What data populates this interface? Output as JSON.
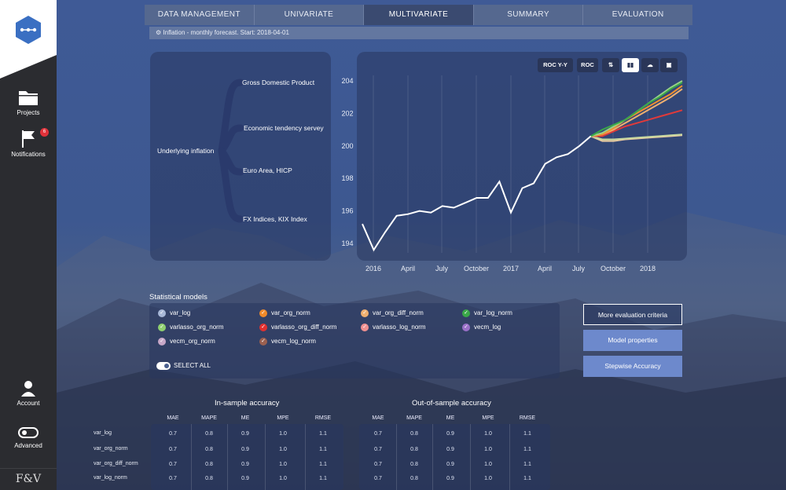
{
  "sidebar": {
    "items": [
      {
        "label": "Projects",
        "icon": "folder-icon"
      },
      {
        "label": "Notifications",
        "icon": "flag-icon",
        "badge": "6"
      },
      {
        "label": "Account",
        "icon": "user-icon"
      },
      {
        "label": "Advanced",
        "icon": "toggle-icon"
      }
    ],
    "brand": "F&V"
  },
  "tabs": [
    {
      "label": "DATA MANAGEMENT"
    },
    {
      "label": "UNIVARIATE"
    },
    {
      "label": "MULTIVARIATE",
      "active": true
    },
    {
      "label": "SUMMARY"
    },
    {
      "label": "EVALUATION"
    }
  ],
  "info_bar": "Inflation - monthly forecast. Start: 2018-04-01",
  "tree": {
    "root": "Underlying inflation",
    "children": [
      "Gross Domestic Product",
      "Economic tendency servey",
      "Euro Area, HICP",
      "FX Indices, KIX Index"
    ]
  },
  "toolbar": {
    "roc_yy": "ROC Y-Y",
    "roc": "ROC"
  },
  "chart_data": {
    "type": "line",
    "x_ticks": [
      "2016",
      "April",
      "July",
      "October",
      "2017",
      "April",
      "July",
      "October",
      "2018"
    ],
    "y_ticks": [
      "204",
      "202",
      "200",
      "198",
      "196",
      "194"
    ],
    "ylim": [
      193,
      205
    ],
    "history": [
      195.2,
      193.6,
      194.7,
      195.7,
      195.8,
      196.0,
      195.9,
      196.3,
      196.2,
      196.5,
      196.8,
      196.8,
      197.8,
      195.9,
      197.4,
      197.7,
      198.9,
      199.3,
      199.5,
      200.0,
      200.6
    ],
    "forecast_start_index": 20,
    "series": [
      {
        "color": "#e8c9a0",
        "values": [
          200.6,
          200.3,
          200.3,
          200.4,
          200.45,
          200.5,
          200.55,
          200.6,
          200.65
        ]
      },
      {
        "color": "#c8d9a0",
        "values": [
          200.6,
          200.4,
          200.4,
          200.45,
          200.5,
          200.55,
          200.6,
          200.65,
          200.7
        ]
      },
      {
        "color": "#e03a3a",
        "values": [
          200.6,
          200.6,
          200.9,
          201.2,
          201.4,
          201.6,
          201.8,
          202.0,
          202.2
        ]
      },
      {
        "color": "#f0b070",
        "values": [
          200.6,
          200.7,
          201.0,
          201.4,
          201.8,
          202.2,
          202.6,
          203.0,
          203.5
        ]
      },
      {
        "color": "#f09030",
        "values": [
          200.6,
          200.7,
          201.1,
          201.6,
          202.0,
          202.4,
          202.8,
          203.2,
          203.7
        ]
      },
      {
        "color": "#9ad08a",
        "values": [
          200.6,
          200.8,
          201.2,
          201.6,
          202.1,
          202.6,
          203.1,
          203.6,
          204.0
        ]
      },
      {
        "color": "#3aa848",
        "values": [
          200.6,
          201.0,
          201.3,
          201.6,
          202.1,
          202.6,
          203.0,
          203.5,
          203.9
        ]
      }
    ]
  },
  "models_title": "Statistical models",
  "models": [
    {
      "label": "var_log",
      "color": "#a8b8d8"
    },
    {
      "label": "var_org_norm",
      "color": "#f08a2a"
    },
    {
      "label": "var_org_diff_norm",
      "color": "#f0b070"
    },
    {
      "label": "var_log_norm",
      "color": "#3aa848"
    },
    {
      "label": "varlasso_org_norm",
      "color": "#8fd070"
    },
    {
      "label": "varlasso_org_diff_norm",
      "color": "#e03030"
    },
    {
      "label": "varlasso_log_norm",
      "color": "#f09090"
    },
    {
      "label": "vecm_log",
      "color": "#9a70c8"
    },
    {
      "label": "vecm_org_norm",
      "color": "#c8a8c8"
    },
    {
      "label": "vecm_log_norm",
      "color": "#9a6050"
    }
  ],
  "select_all": "SELECT ALL",
  "buttons": {
    "more": "More evaluation criteria",
    "props": "Model properties",
    "stepwise": "Stepwise Accuracy"
  },
  "in_sample": {
    "title": "In-sample accuracy",
    "columns": [
      "MAE",
      "MAPE",
      "ME",
      "MPE",
      "RMSE"
    ],
    "rows": [
      [
        "0.7",
        "0.8",
        "0.9",
        "1.0",
        "1.1"
      ],
      [
        "0.7",
        "0.8",
        "0.9",
        "1.0",
        "1.1"
      ],
      [
        "0.7",
        "0.8",
        "0.9",
        "1.0",
        "1.1"
      ],
      [
        "0.7",
        "0.8",
        "0.9",
        "1.0",
        "1.1"
      ]
    ]
  },
  "out_sample": {
    "title": "Out-of-sample accuracy",
    "columns": [
      "MAE",
      "MAPE",
      "ME",
      "MPE",
      "RMSE"
    ],
    "rows": [
      [
        "0.7",
        "0.8",
        "0.9",
        "1.0",
        "1.1"
      ],
      [
        "0.7",
        "0.8",
        "0.9",
        "1.0",
        "1.1"
      ],
      [
        "0.7",
        "0.8",
        "0.9",
        "1.0",
        "1.1"
      ],
      [
        "0.7",
        "0.8",
        "0.9",
        "1.0",
        "1.1"
      ]
    ]
  },
  "row_labels": [
    "var_log",
    "var_org_norm",
    "var_org_diff_norm",
    "var_log_norm"
  ]
}
